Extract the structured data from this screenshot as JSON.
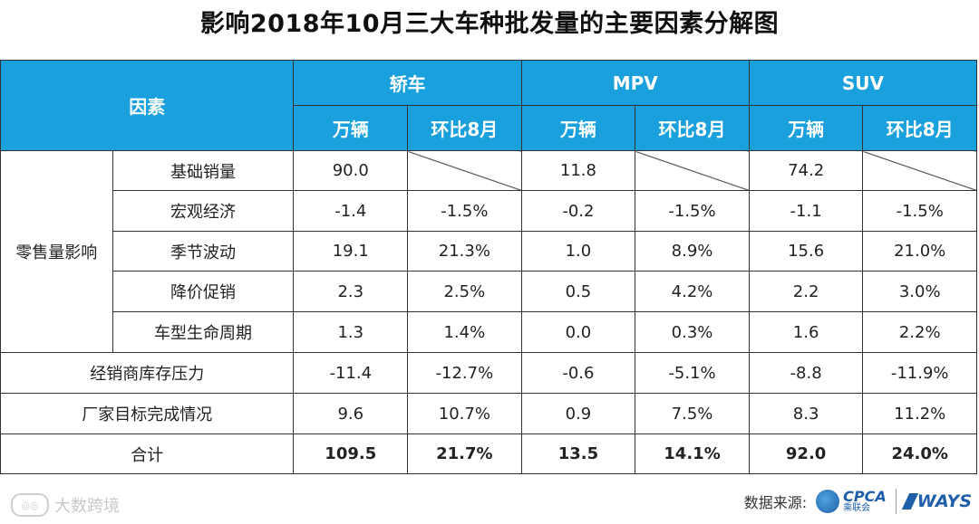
{
  "title": "影响2018年10月三大车种批发量的主要因素分解图",
  "header": {
    "factor": "因素",
    "groups": [
      "轿车",
      "MPV",
      "SUV"
    ],
    "sub": [
      "万辆",
      "环比8月"
    ]
  },
  "group_label": "零售量影响",
  "rows": [
    {
      "label": "基础销量",
      "values": [
        "90.0",
        "",
        "11.8",
        "",
        "74.2",
        ""
      ]
    },
    {
      "label": "宏观经济",
      "values": [
        "-1.4",
        "-1.5%",
        "-0.2",
        "-1.5%",
        "-1.1",
        "-1.5%"
      ]
    },
    {
      "label": "季节波动",
      "values": [
        "19.1",
        "21.3%",
        "1.0",
        "8.9%",
        "15.6",
        "21.0%"
      ]
    },
    {
      "label": "降价促销",
      "values": [
        "2.3",
        "2.5%",
        "0.5",
        "4.2%",
        "2.2",
        "3.0%"
      ]
    },
    {
      "label": "车型生命周期",
      "values": [
        "1.3",
        "1.4%",
        "0.0",
        "0.3%",
        "1.6",
        "2.2%"
      ]
    },
    {
      "label": "经销商库存压力",
      "values": [
        "-11.4",
        "-12.7%",
        "-0.6",
        "-5.1%",
        "-8.8",
        "-11.9%"
      ]
    },
    {
      "label": "厂家目标完成情况",
      "values": [
        "9.6",
        "10.7%",
        "0.9",
        "7.5%",
        "8.3",
        "11.2%"
      ]
    }
  ],
  "total": {
    "label": "合计",
    "values": [
      "109.5",
      "21.7%",
      "13.5",
      "14.1%",
      "92.0",
      "24.0%"
    ]
  },
  "footer": {
    "watermark": "大数跨境",
    "source_label": "数据来源:",
    "cpca_text": "CPCA",
    "cpca_sub": "乘联会",
    "ways_text": "WAYS"
  },
  "colors": {
    "header_bg": "#1aa0dc",
    "negative": "#e02020"
  }
}
